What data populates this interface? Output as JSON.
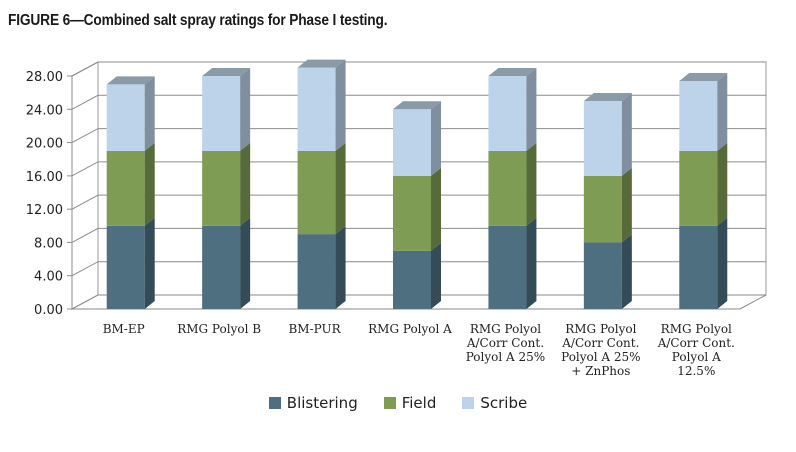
{
  "title": "FIGURE 6—Combined salt spray ratings for Phase I testing.",
  "chart_data": {
    "type": "bar",
    "stacked": true,
    "three_d": true,
    "categories": [
      "BM-EP",
      "RMG Polyol B",
      "BM-PUR",
      "RMG Polyol A",
      "RMG Polyol A/Corr Cont. Polyol A 25%",
      "RMG Polyol A/Corr Cont. Polyol A 25% + ZnPhos",
      "RMG Polyol A/Corr Cont. Polyol A 12.5%"
    ],
    "category_lines": [
      [
        "BM-EP"
      ],
      [
        "RMG Polyol B"
      ],
      [
        "BM-PUR"
      ],
      [
        "RMG Polyol A"
      ],
      [
        "RMG Polyol",
        "A/Corr Cont.",
        "Polyol A 25%"
      ],
      [
        "RMG Polyol",
        "A/Corr Cont.",
        "Polyol A 25%",
        "+ ZnPhos"
      ],
      [
        "RMG Polyol",
        "A/Corr Cont.",
        "Polyol A",
        "12.5%"
      ]
    ],
    "series": [
      {
        "name": "Blistering",
        "values": [
          10,
          10,
          9,
          7,
          10,
          8,
          10
        ]
      },
      {
        "name": "Field",
        "values": [
          9,
          9,
          10,
          9,
          9,
          8,
          9
        ]
      },
      {
        "name": "Scribe",
        "values": [
          8,
          9,
          10,
          8,
          9,
          9,
          8.4
        ]
      }
    ],
    "ylim": [
      0,
      28
    ],
    "yticks": [
      "0.00",
      "4.00",
      "8.00",
      "12.00",
      "16.00",
      "20.00",
      "24.00",
      "28.00"
    ],
    "grid": true,
    "legend_position": "bottom",
    "colors": {
      "Blistering": "#4e6f80",
      "Field": "#7f9c55",
      "Scribe": "#bcd3ea"
    }
  }
}
